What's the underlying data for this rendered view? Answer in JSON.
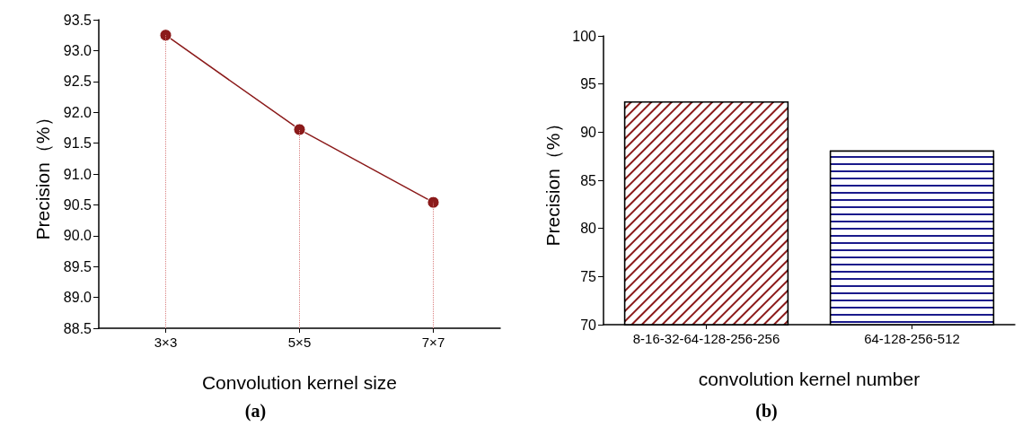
{
  "chart_data": [
    {
      "type": "line",
      "title": "(a)",
      "xlabel": "Convolution kernel size",
      "ylabel": "Precision（%）",
      "categories": [
        "3×3",
        "5×5",
        "7×7"
      ],
      "series": [
        {
          "color": "#8b1a1a",
          "values": [
            93.25,
            91.72,
            90.54
          ]
        }
      ],
      "ylim": [
        88.5,
        93.5
      ],
      "yticks": [
        88.5,
        {
          "value": 89,
          "label": "89.0"
        },
        89.5,
        {
          "value": 90,
          "label": "90.0"
        },
        90.5,
        {
          "value": 91,
          "label": "91.0"
        },
        91.5,
        {
          "value": 92,
          "label": "92.0"
        },
        92.5,
        {
          "value": 93,
          "label": "93.0"
        },
        93.5
      ],
      "marker": "circle",
      "line_style": "solid",
      "ref_lines": [
        {
          "axis": "x",
          "value": "3×3",
          "color": "#d98080",
          "line_style": "dotted"
        },
        {
          "axis": "x",
          "value": "5×5",
          "color": "#d98080",
          "line_style": "dotted"
        },
        {
          "axis": "x",
          "value": "7×7",
          "color": "#d98080",
          "line_style": "dotted"
        }
      ]
    },
    {
      "type": "bar",
      "title": "(b)",
      "xlabel": "convolution kernel number",
      "ylabel": "Precision（%）",
      "categories": [
        "8-16-32-64-128-256-256",
        "64-128-256-512"
      ],
      "values": [
        93.2,
        88.1
      ],
      "colors": [
        "#8b1a1a",
        "#1a1a8b"
      ],
      "ylim": [
        70,
        100
      ],
      "yticks": [
        70,
        75,
        80,
        85,
        90,
        95,
        100
      ]
    }
  ]
}
